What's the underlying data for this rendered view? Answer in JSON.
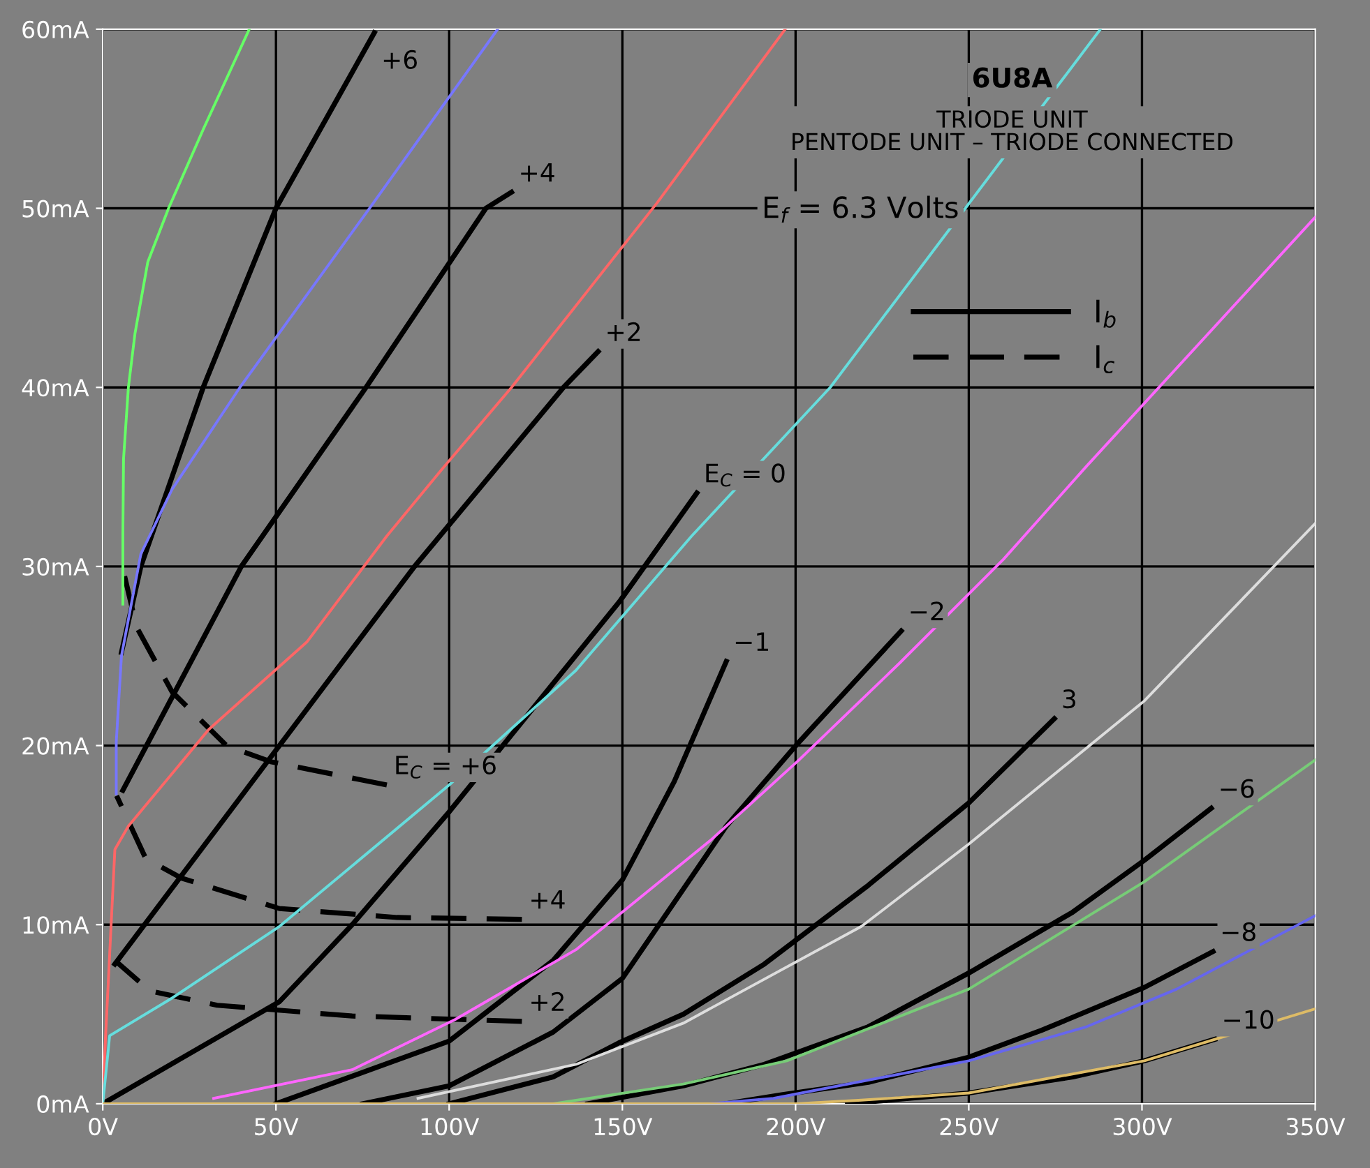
{
  "chart_data": {
    "type": "line",
    "title": "6U8A",
    "subtitle": "TRIODE UNIT\nPENTODE UNIT – TRIODE CONNECTED",
    "annotations": [
      "E$_{f}$ = 6.3 Volts",
      "I$_{b}$",
      "I$_{c}$"
    ],
    "legend": "top right",
    "grid": true,
    "marker": "none",
    "xlim": [
      0,
      350
    ],
    "xticks": [
      {
        "value": 0,
        "label": "0V"
      },
      {
        "value": 50,
        "label": "50V"
      },
      {
        "value": 100,
        "label": "100V"
      },
      {
        "value": 150,
        "label": "150V"
      },
      {
        "value": 200,
        "label": "200V"
      },
      {
        "value": 250,
        "label": "250V"
      },
      {
        "value": 300,
        "label": "300V"
      },
      {
        "value": 350,
        "label": "350V"
      }
    ],
    "ylim": [
      0,
      60
    ],
    "yticks": [
      {
        "value": 0,
        "label": "0mA"
      },
      {
        "value": 10,
        "label": "10mA"
      },
      {
        "value": 20,
        "label": "20mA"
      },
      {
        "value": 30,
        "label": "30mA"
      },
      {
        "value": 40,
        "label": "40mA"
      },
      {
        "value": 50,
        "label": "50mA"
      },
      {
        "value": 60,
        "label": "60mA"
      }
    ],
    "series": [
      {
        "color": "#66ff66",
        "x": [
          5.8,
          5.8,
          6.0,
          7.4,
          9.3,
          13,
          19,
          29,
          42.3
        ],
        "values": [
          27.9,
          31.7,
          36,
          40,
          43,
          47,
          50,
          54.4,
          60
        ]
      },
      {
        "color": "#7777ff",
        "x": [
          3.9,
          3.9,
          5.4,
          11,
          20,
          39.6,
          77,
          114
        ],
        "values": [
          17.3,
          20.2,
          25,
          30.7,
          34.3,
          40,
          50,
          60
        ]
      },
      {
        "color": "#ff6666",
        "x": [
          0,
          0.8,
          3.5,
          7.4,
          30.6,
          59,
          82,
          97.8,
          118,
          160,
          197
        ],
        "values": [
          0,
          3.7,
          14.2,
          15.5,
          20.9,
          25.8,
          31.7,
          35.4,
          40,
          50.3,
          60
        ]
      },
      {
        "color": "#66dddd",
        "x": [
          0,
          2,
          20,
          51,
          100,
          136.6,
          170,
          210,
          249,
          288
        ],
        "values": [
          0,
          3.8,
          5.9,
          9.9,
          17.8,
          24.2,
          31.7,
          40,
          50,
          60
        ]
      },
      {
        "color": "#ff66ff",
        "x": [
          32,
          72,
          101.7,
          136.6,
          175.4,
          201,
          230,
          260,
          284,
          350
        ],
        "values": [
          0.3,
          1.9,
          4.7,
          8.6,
          14.7,
          19.2,
          24.6,
          30.4,
          35.6,
          49.5
        ]
      },
      {
        "color": "#dddddd",
        "x": [
          91,
          136.6,
          167.6,
          219,
          250,
          300.7,
          350
        ],
        "values": [
          0.3,
          2.2,
          4.5,
          9.9,
          14.5,
          22.5,
          32.4
        ]
      },
      {
        "color": "#77cc77",
        "x": [
          130,
          167.6,
          197.5,
          250,
          300.7,
          350
        ],
        "values": [
          0,
          1.1,
          2.4,
          6.4,
          12.4,
          19.2
        ]
      },
      {
        "color": "#6666ee",
        "x": [
          175,
          193.6,
          250,
          284,
          310,
          350
        ],
        "values": [
          0,
          0.3,
          2.4,
          4.3,
          6.4,
          10.5
        ]
      },
      {
        "color": "#ddbb66",
        "x": [
          0,
          200,
          219,
          250,
          300.7,
          350
        ],
        "values": [
          0,
          0,
          0.2,
          0.6,
          2.4,
          5.3
        ]
      },
      {
        "name": "+6",
        "color": "#000000",
        "line_style": "solid",
        "x": [
          5.4,
          11,
          29,
          50,
          78.4
        ],
        "values": [
          25.2,
          30,
          40,
          50,
          59.8
        ]
      },
      {
        "name": "+4",
        "color": "#000000",
        "line_style": "solid",
        "x": [
          5.8,
          40,
          76,
          110.6,
          118
        ],
        "values": [
          17.5,
          30,
          40,
          50,
          50.9
        ]
      },
      {
        "name": "+2",
        "color": "#000000",
        "line_style": "solid",
        "x": [
          3.5,
          51,
          90,
          133,
          143
        ],
        "values": [
          7.8,
          20,
          30,
          40,
          42
        ]
      },
      {
        "name": "E$_{C}$ = 0",
        "color": "#000000",
        "line_style": "solid",
        "x": [
          0,
          51,
          72,
          100,
          149.4,
          171.5
        ],
        "values": [
          0,
          5.7,
          10,
          16.3,
          28.1,
          34.1
        ]
      },
      {
        "name": "−1",
        "color": "#000000",
        "line_style": "solid",
        "x": [
          50,
          100,
          130,
          150,
          165,
          180
        ],
        "values": [
          0,
          3.5,
          8,
          12.5,
          18,
          24.7
        ]
      },
      {
        "name": "−2",
        "color": "#000000",
        "line_style": "solid",
        "x": [
          75,
          100,
          130,
          150,
          180,
          201,
          230.5
        ],
        "values": [
          0,
          1,
          4,
          7,
          15.5,
          20.2,
          26.4
        ]
      },
      {
        "name": "3",
        "color": "#000000",
        "line_style": "solid",
        "x": [
          100,
          130,
          149,
          167.6,
          191,
          221,
          250,
          274.7
        ],
        "values": [
          0,
          1.5,
          3.4,
          5,
          7.8,
          12.2,
          16.8,
          21.5
        ]
      },
      {
        "name": "−6",
        "color": "#000000",
        "line_style": "solid",
        "x": [
          140,
          167.6,
          191,
          221,
          250,
          280,
          300.7,
          320
        ],
        "values": [
          0,
          1,
          2.2,
          4.3,
          7.3,
          10.7,
          13.6,
          16.5
        ]
      },
      {
        "name": "−8",
        "color": "#000000",
        "line_style": "solid",
        "x": [
          180,
          196,
          221,
          250,
          271,
          300.7,
          320.5
        ],
        "values": [
          0,
          0.5,
          1.2,
          2.6,
          4.1,
          6.5,
          8.5
        ]
      },
      {
        "name": "−10",
        "color": "#000000",
        "line_style": "solid",
        "x": [
          215,
          250,
          280,
          300.7,
          321
        ],
        "values": [
          0,
          0.6,
          1.5,
          2.4,
          3.6
        ]
      },
      {
        "name": "E$_{C}$ = +6",
        "color": "#000000",
        "line_style": "dashed",
        "x": [
          5.4,
          9.8,
          20,
          35.7,
          48.5,
          82
        ],
        "values": [
          30.2,
          26.6,
          23,
          20,
          19.1,
          17.8
        ]
      },
      {
        "name": "+4",
        "color": "#000000",
        "line_style": "dashed",
        "x": [
          4,
          12.4,
          22.7,
          51,
          85,
          121
        ],
        "values": [
          17.2,
          13.7,
          12.6,
          10.9,
          10.4,
          10.3
        ]
      },
      {
        "name": "+2",
        "color": "#000000",
        "line_style": "dashed",
        "x": [
          3.5,
          13.6,
          33,
          72,
          121
        ],
        "values": [
          8.0,
          6.3,
          5.5,
          4.9,
          4.6
        ]
      }
    ]
  }
}
